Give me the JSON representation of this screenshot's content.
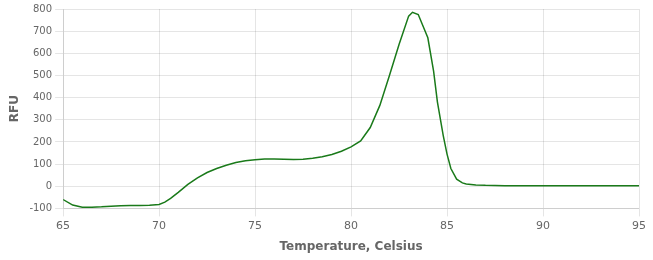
{
  "chart_data": {
    "type": "line",
    "xlabel": "Temperature, Celsius",
    "ylabel": "RFU",
    "x": [
      65.0,
      65.5,
      66.0,
      66.5,
      67.0,
      67.5,
      68.0,
      68.5,
      69.0,
      69.5,
      70.0,
      70.3,
      70.6,
      71.0,
      71.5,
      72.0,
      72.5,
      73.0,
      73.5,
      74.0,
      74.5,
      75.0,
      75.5,
      76.0,
      76.5,
      77.0,
      77.5,
      78.0,
      78.5,
      79.0,
      79.5,
      80.0,
      80.5,
      81.0,
      81.5,
      82.0,
      82.5,
      83.0,
      83.2,
      83.5,
      84.0,
      84.3,
      84.5,
      84.8,
      85.0,
      85.2,
      85.5,
      85.8,
      86.0,
      86.5,
      87.0,
      87.5,
      88.0,
      89.0,
      90.0,
      91.0,
      92.0,
      93.0,
      94.0,
      95.0
    ],
    "values": [
      -60,
      -85,
      -95,
      -95,
      -93,
      -90,
      -88,
      -87,
      -87,
      -86,
      -82,
      -72,
      -55,
      -28,
      8,
      38,
      62,
      80,
      95,
      107,
      115,
      120,
      123,
      123,
      122,
      121,
      122,
      126,
      133,
      143,
      158,
      178,
      205,
      265,
      365,
      500,
      640,
      768,
      785,
      775,
      670,
      520,
      380,
      230,
      145,
      80,
      32,
      15,
      10,
      6,
      4,
      3,
      2,
      2,
      2,
      2,
      2,
      2,
      2,
      2
    ],
    "color": "#1a7a1a",
    "xlim": [
      65,
      95
    ],
    "ylim": [
      -100,
      800
    ],
    "xticks": [
      65,
      70,
      75,
      80,
      85,
      90,
      95
    ],
    "yticks": [
      -100,
      0,
      100,
      200,
      300,
      400,
      500,
      600,
      700,
      800
    ],
    "grid": true
  }
}
